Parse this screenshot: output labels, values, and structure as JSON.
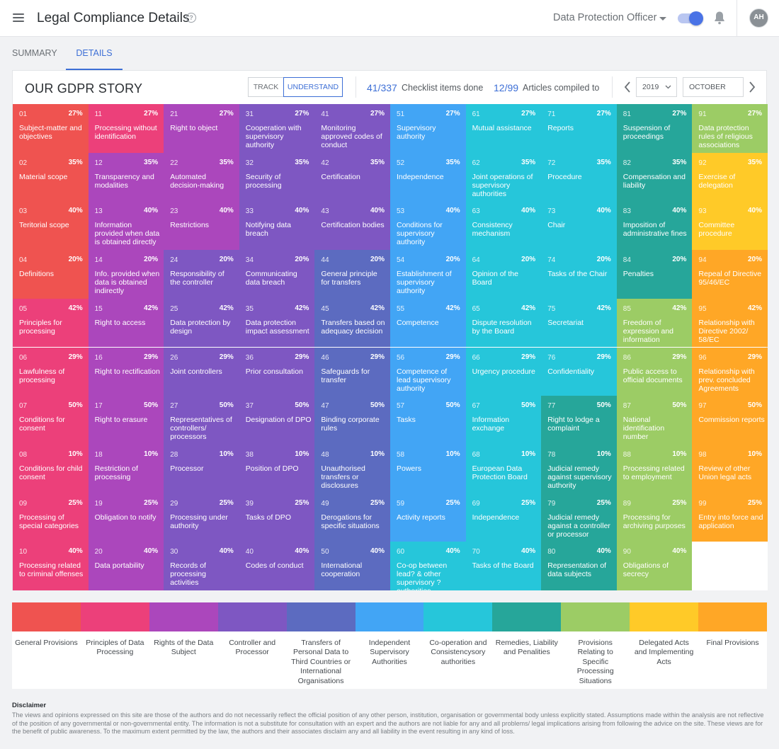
{
  "app": {
    "title": "Legal Compliance Details",
    "role": "Data Protection Officer",
    "avatar_initials": "AH"
  },
  "tabs": [
    {
      "label": "SUMMARY",
      "active": false
    },
    {
      "label": "DETAILS",
      "active": true
    }
  ],
  "story": {
    "title": "OUR GDPR STORY",
    "mode_buttons": [
      "TRACK",
      "UNDERSTAND"
    ],
    "active_mode": "UNDERSTAND",
    "checklist_count": "41/337",
    "checklist_label": "Checklist items done",
    "articles_count": "12/99",
    "articles_label": "Articles compiled to",
    "year": "2019",
    "month": "OCTOBER"
  },
  "chapter_colors": [
    "#ef5350",
    "#ec407a",
    "#ab47bc",
    "#7e57c2",
    "#5c6bc0",
    "#42a5f5",
    "#26c6da",
    "#26a69a",
    "#9ccc65",
    "#ffca28",
    "#ffa726"
  ],
  "articles": [
    {
      "num": "01",
      "pct": "27%",
      "name": "Subject-matter and objectives",
      "chapter": 0
    },
    {
      "num": "02",
      "pct": "35%",
      "name": "Material scope",
      "chapter": 0
    },
    {
      "num": "03",
      "pct": "40%",
      "name": "Teritorial scope",
      "chapter": 0
    },
    {
      "num": "04",
      "pct": "20%",
      "name": "Definitions",
      "chapter": 0
    },
    {
      "num": "05",
      "pct": "42%",
      "name": "Principles for processing",
      "chapter": 1
    },
    {
      "num": "06",
      "pct": "29%",
      "name": "Lawfulness of processing",
      "chapter": 1
    },
    {
      "num": "07",
      "pct": "50%",
      "name": "Conditions for consent",
      "chapter": 1
    },
    {
      "num": "08",
      "pct": "10%",
      "name": "Conditions for child consent",
      "chapter": 1
    },
    {
      "num": "09",
      "pct": "25%",
      "name": "Processing of special categories",
      "chapter": 1
    },
    {
      "num": "10",
      "pct": "40%",
      "name": "Processing related to criminal offenses",
      "chapter": 1
    },
    {
      "num": "11",
      "pct": "27%",
      "name": "Processing without identification",
      "chapter": 1
    },
    {
      "num": "12",
      "pct": "35%",
      "name": "Transparency and modalities",
      "chapter": 2
    },
    {
      "num": "13",
      "pct": "40%",
      "name": "Information provided when data is obtained directly",
      "chapter": 2
    },
    {
      "num": "14",
      "pct": "20%",
      "name": "Info. provided when data is obtained indirectly",
      "chapter": 2
    },
    {
      "num": "15",
      "pct": "42%",
      "name": "Right to access",
      "chapter": 2
    },
    {
      "num": "16",
      "pct": "29%",
      "name": "Right to rectification",
      "chapter": 2
    },
    {
      "num": "17",
      "pct": "50%",
      "name": "Right to erasure",
      "chapter": 2
    },
    {
      "num": "18",
      "pct": "10%",
      "name": "Restriction of processing",
      "chapter": 2
    },
    {
      "num": "19",
      "pct": "25%",
      "name": "Obligation to notify",
      "chapter": 2
    },
    {
      "num": "20",
      "pct": "40%",
      "name": "Data portability",
      "chapter": 2
    },
    {
      "num": "21",
      "pct": "27%",
      "name": "Right to object",
      "chapter": 2
    },
    {
      "num": "22",
      "pct": "35%",
      "name": "Automated decision-making",
      "chapter": 2
    },
    {
      "num": "23",
      "pct": "40%",
      "name": "Restrictions",
      "chapter": 2
    },
    {
      "num": "24",
      "pct": "20%",
      "name": "Responsibility of the controller",
      "chapter": 3
    },
    {
      "num": "25",
      "pct": "42%",
      "name": "Data protection by design",
      "chapter": 3
    },
    {
      "num": "26",
      "pct": "29%",
      "name": "Joint controllers",
      "chapter": 3
    },
    {
      "num": "27",
      "pct": "50%",
      "name": "Representatives of controllers/ processors",
      "chapter": 3
    },
    {
      "num": "28",
      "pct": "10%",
      "name": "Processor",
      "chapter": 3
    },
    {
      "num": "29",
      "pct": "25%",
      "name": "Processing under authority",
      "chapter": 3
    },
    {
      "num": "30",
      "pct": "40%",
      "name": "Records of processing activities",
      "chapter": 3
    },
    {
      "num": "31",
      "pct": "27%",
      "name": "Cooperation with supervisory authority",
      "chapter": 3
    },
    {
      "num": "32",
      "pct": "35%",
      "name": "Security of processing",
      "chapter": 3
    },
    {
      "num": "33",
      "pct": "40%",
      "name": "Notifying data breach",
      "chapter": 3
    },
    {
      "num": "34",
      "pct": "20%",
      "name": "Communicating data breach",
      "chapter": 3
    },
    {
      "num": "35",
      "pct": "42%",
      "name": "Data protection impact assessment",
      "chapter": 3
    },
    {
      "num": "36",
      "pct": "29%",
      "name": "Prior consultation",
      "chapter": 3
    },
    {
      "num": "37",
      "pct": "50%",
      "name": "Designation of DPO",
      "chapter": 3
    },
    {
      "num": "38",
      "pct": "10%",
      "name": "Position of DPO",
      "chapter": 3
    },
    {
      "num": "39",
      "pct": "25%",
      "name": "Tasks of DPO",
      "chapter": 3
    },
    {
      "num": "40",
      "pct": "40%",
      "name": "Codes of conduct",
      "chapter": 3
    },
    {
      "num": "41",
      "pct": "27%",
      "name": "Monitoring approved codes of conduct",
      "chapter": 3
    },
    {
      "num": "42",
      "pct": "35%",
      "name": "Certification",
      "chapter": 3
    },
    {
      "num": "43",
      "pct": "40%",
      "name": "Certification bodies",
      "chapter": 3
    },
    {
      "num": "44",
      "pct": "20%",
      "name": "General principle for transfers",
      "chapter": 4
    },
    {
      "num": "45",
      "pct": "42%",
      "name": "Transfers based on adequacy decision",
      "chapter": 4
    },
    {
      "num": "46",
      "pct": "29%",
      "name": "Safeguards for transfer",
      "chapter": 4
    },
    {
      "num": "47",
      "pct": "50%",
      "name": "Binding corporate rules",
      "chapter": 4
    },
    {
      "num": "48",
      "pct": "10%",
      "name": "Unauthorised transfers or disclosures",
      "chapter": 4
    },
    {
      "num": "49",
      "pct": "25%",
      "name": "Derogations for specific situations",
      "chapter": 4
    },
    {
      "num": "50",
      "pct": "40%",
      "name": "International cooperation",
      "chapter": 4
    },
    {
      "num": "51",
      "pct": "27%",
      "name": "Supervisory authority",
      "chapter": 5
    },
    {
      "num": "52",
      "pct": "35%",
      "name": "Independence",
      "chapter": 5
    },
    {
      "num": "53",
      "pct": "40%",
      "name": "Conditions for supervisory authority",
      "chapter": 5
    },
    {
      "num": "54",
      "pct": "20%",
      "name": "Establishment of supervisory authority",
      "chapter": 5
    },
    {
      "num": "55",
      "pct": "42%",
      "name": "Competence",
      "chapter": 5
    },
    {
      "num": "56",
      "pct": "29%",
      "name": "Competence of lead supervisory authority",
      "chapter": 5
    },
    {
      "num": "57",
      "pct": "50%",
      "name": "Tasks",
      "chapter": 5
    },
    {
      "num": "58",
      "pct": "10%",
      "name": "Powers",
      "chapter": 5
    },
    {
      "num": "59",
      "pct": "25%",
      "name": "Activity reports",
      "chapter": 5
    },
    {
      "num": "60",
      "pct": "40%",
      "name": "Co-op between lead? & other supervisory ? authorities",
      "chapter": 6
    },
    {
      "num": "61",
      "pct": "27%",
      "name": "Mutual assistance",
      "chapter": 6
    },
    {
      "num": "62",
      "pct": "35%",
      "name": "Joint operations of supervisory authorities",
      "chapter": 6
    },
    {
      "num": "63",
      "pct": "40%",
      "name": "Consistency mechanism",
      "chapter": 6
    },
    {
      "num": "64",
      "pct": "20%",
      "name": "Opinion of the Board",
      "chapter": 6
    },
    {
      "num": "65",
      "pct": "42%",
      "name": "Dispute resolution by the Board",
      "chapter": 6
    },
    {
      "num": "66",
      "pct": "29%",
      "name": "Urgency procedure",
      "chapter": 6
    },
    {
      "num": "67",
      "pct": "50%",
      "name": "Information exchange",
      "chapter": 6
    },
    {
      "num": "68",
      "pct": "10%",
      "name": "European Data Protection Board",
      "chapter": 6
    },
    {
      "num": "69",
      "pct": "25%",
      "name": "Independence",
      "chapter": 6
    },
    {
      "num": "70",
      "pct": "40%",
      "name": "Tasks of the Board",
      "chapter": 6
    },
    {
      "num": "71",
      "pct": "27%",
      "name": "Reports",
      "chapter": 6
    },
    {
      "num": "72",
      "pct": "35%",
      "name": "Procedure",
      "chapter": 6
    },
    {
      "num": "73",
      "pct": "40%",
      "name": "Chair",
      "chapter": 6
    },
    {
      "num": "74",
      "pct": "20%",
      "name": "Tasks of the Chair",
      "chapter": 6
    },
    {
      "num": "75",
      "pct": "42%",
      "name": "Secretariat",
      "chapter": 6
    },
    {
      "num": "76",
      "pct": "29%",
      "name": "Confidentiality",
      "chapter": 6
    },
    {
      "num": "77",
      "pct": "50%",
      "name": "Right to lodge a complaint",
      "chapter": 7
    },
    {
      "num": "78",
      "pct": "10%",
      "name": "Judicial remedy against supervisory authority",
      "chapter": 7
    },
    {
      "num": "79",
      "pct": "25%",
      "name": "Judicial remedy against a controller or processor",
      "chapter": 7
    },
    {
      "num": "80",
      "pct": "40%",
      "name": "Representation of data subjects",
      "chapter": 7
    },
    {
      "num": "81",
      "pct": "27%",
      "name": "Suspension of proceedings",
      "chapter": 7
    },
    {
      "num": "82",
      "pct": "35%",
      "name": "Compensation and liability",
      "chapter": 7
    },
    {
      "num": "83",
      "pct": "40%",
      "name": "Imposition of administrative fines",
      "chapter": 7
    },
    {
      "num": "84",
      "pct": "20%",
      "name": "Penalties",
      "chapter": 7
    },
    {
      "num": "85",
      "pct": "42%",
      "name": "Freedom of expression and information",
      "chapter": 8
    },
    {
      "num": "86",
      "pct": "29%",
      "name": "Public access to official documents",
      "chapter": 8
    },
    {
      "num": "87",
      "pct": "50%",
      "name": "National identification number",
      "chapter": 8
    },
    {
      "num": "88",
      "pct": "10%",
      "name": "Processing related to employment",
      "chapter": 8
    },
    {
      "num": "89",
      "pct": "25%",
      "name": "Processing for archiving purposes",
      "chapter": 8
    },
    {
      "num": "90",
      "pct": "40%",
      "name": "Obligations of secrecy",
      "chapter": 8
    },
    {
      "num": "91",
      "pct": "27%",
      "name": "Data protection rules of religious associations",
      "chapter": 8
    },
    {
      "num": "92",
      "pct": "35%",
      "name": "Exercise of delegation",
      "chapter": 9
    },
    {
      "num": "93",
      "pct": "40%",
      "name": "Committee procedure",
      "chapter": 9
    },
    {
      "num": "94",
      "pct": "20%",
      "name": "Repeal of Directive 95/46/EC",
      "chapter": 10
    },
    {
      "num": "95",
      "pct": "42%",
      "name": "Relationship with Directive 2002/ 58/EC",
      "chapter": 10
    },
    {
      "num": "96",
      "pct": "29%",
      "name": "Relationship with prev. concluded Agreements",
      "chapter": 10
    },
    {
      "num": "97",
      "pct": "50%",
      "name": "Commission reports",
      "chapter": 10
    },
    {
      "num": "98",
      "pct": "10%",
      "name": "Review of other Union legal acts",
      "chapter": 10
    },
    {
      "num": "99",
      "pct": "25%",
      "name": "Entry into force and application",
      "chapter": 10
    }
  ],
  "legend": [
    "General Provisions",
    "Principles of Data Processing",
    "Rights of the Data Subject",
    "Controller and Processor",
    "Transfers of Personal Data to Third Countries or International Organisations",
    "Independent Supervisory Authorities",
    "Co-operation and Consistencysory authorities",
    "Remedies, Liability and Penalities",
    "Provisions Relating to Specific Processing Situations",
    "Delegated Acts and Implementing Acts",
    "Final Provisions"
  ],
  "disclaimer": {
    "title": "Disclaimer",
    "text": "The views and opinions expressed on this site are those of the authors and do not necessarily reflect the official position of any other person, institution, organisation or governmental body unless explicitly stated. Assumptions made within the analysis are not reflective of the position of any governmental or non-governmental entity. The information is not a substitute for consultation with an expert and the authors are not liable for any and all problems/ legal implications arising from following the advice on the site. These views are for the benefit of public awareness. To the maximum extent permitted by the law, the authors and their associates disclaim any and all liability in the event resulting in any kind of loss."
  }
}
